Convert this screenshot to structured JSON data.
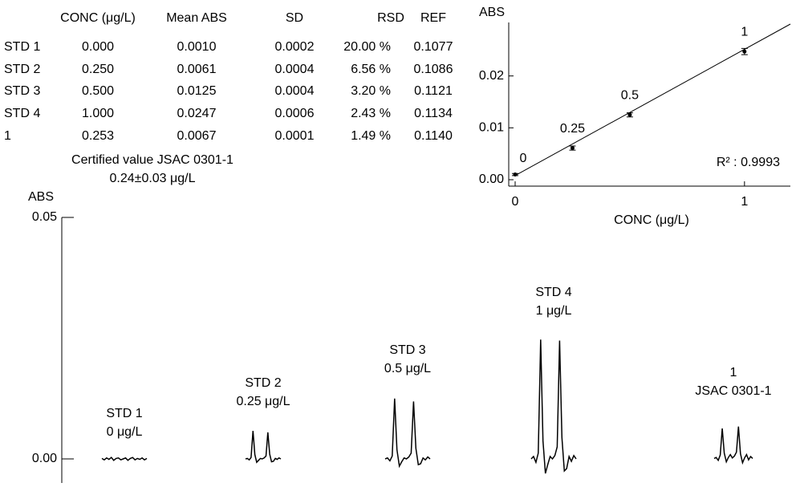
{
  "table": {
    "headers": [
      "CONC (μg/L)",
      "Mean ABS",
      "SD",
      "RSD",
      "REF"
    ],
    "rows": [
      [
        "STD 1",
        "0.000",
        "0.0010",
        "0.0002",
        "20.00 %",
        "0.1077"
      ],
      [
        "STD 2",
        "0.250",
        "0.0061",
        "0.0004",
        "6.56 %",
        "0.1086"
      ],
      [
        "STD 3",
        "0.500",
        "0.0125",
        "0.0004",
        "3.20 %",
        "0.1121"
      ],
      [
        "STD 4",
        "1.000",
        "0.0247",
        "0.0006",
        "2.43 %",
        "0.1134"
      ],
      [
        "1",
        "0.253",
        "0.0067",
        "0.0001",
        "1.49 %",
        "0.1140"
      ]
    ]
  },
  "note": [
    "Certified value JSAC 0301-1",
    "0.24±0.03 μg/L"
  ],
  "chart_data": [
    {
      "type": "scatter",
      "y_label": "ABS",
      "x_label": "CONC (μg/L)",
      "annotation": "R² : 0.9993",
      "x": [
        0,
        0.25,
        0.5,
        1
      ],
      "values": [
        0.001,
        0.0061,
        0.0125,
        0.0247
      ],
      "error": [
        0.0002,
        0.0004,
        0.0004,
        0.0006
      ],
      "point_labels": [
        "0",
        "0.25",
        "0.5",
        "1"
      ],
      "color": "#000000",
      "fit_line": {
        "x": [
          0,
          1.2
        ],
        "y": [
          0.0008,
          0.03
        ]
      },
      "xlim": [
        0,
        1.2
      ],
      "ylim": [
        0,
        0.03
      ],
      "xticks": [
        0,
        1
      ],
      "yticks": [
        {
          "value": 0,
          "label": "0.00"
        },
        {
          "value": 0.01,
          "label": "0.01"
        },
        {
          "value": 0.02,
          "label": "0.02"
        }
      ],
      "grid": false
    },
    {
      "type": "line",
      "y_label": "ABS",
      "ylim": [
        -0.005,
        0.05
      ],
      "yticks": [
        {
          "value": 0,
          "label": "0.00"
        },
        {
          "value": 0.05,
          "label": "0.05"
        }
      ],
      "color": "#000000",
      "series": [
        {
          "name": "STD 1",
          "label": "0 μg/L",
          "values": [
            0.0001,
            -0.0002,
            0.0002,
            -0.0001,
            0.0003,
            -0.0003,
            0.0001,
            0.0002,
            -0.0002,
            0.0,
            0.0002,
            -0.0003,
            0.0001,
            0.0003,
            -0.0002,
            0.0001,
            -0.0001,
            0.0002,
            -0.0002,
            0.0001
          ]
        },
        {
          "name": "STD 2",
          "label": "0.25 μg/L",
          "values": [
            0.0,
            0.0001,
            -0.0002,
            0.0003,
            0.0058,
            0.0009,
            -0.0007,
            -0.0003,
            0.0001,
            0.0,
            0.0002,
            0.0006,
            0.0055,
            0.001,
            -0.0006,
            -0.0005,
            0.0001,
            -0.0001,
            0.0002,
            0.0
          ]
        },
        {
          "name": "STD 3",
          "label": "0.5 μg/L",
          "values": [
            0.0,
            0.0002,
            -0.0004,
            0.0006,
            0.0125,
            0.0019,
            -0.0015,
            -0.0006,
            0.0002,
            0.0,
            0.0004,
            0.0012,
            0.0119,
            0.0022,
            -0.0012,
            -0.001,
            0.0002,
            -0.0002,
            0.0004,
            0.0
          ]
        },
        {
          "name": "STD 4",
          "label": "1 μg/L",
          "values": [
            0.0,
            0.0005,
            -0.0007,
            0.0012,
            0.0247,
            0.0037,
            -0.003,
            -0.0012,
            0.0005,
            0.0,
            0.0007,
            0.0025,
            0.0245,
            0.0044,
            -0.0025,
            -0.002,
            0.0005,
            -0.0005,
            0.0007,
            0.0
          ]
        },
        {
          "name": "1",
          "label": "JSAC 0301-1",
          "values": [
            0.0001,
            0.0003,
            -0.0003,
            0.0008,
            0.0063,
            0.0012,
            -0.0006,
            0.0003,
            0.0009,
            0.0002,
            0.0006,
            0.0014,
            0.0067,
            0.0011,
            -0.0008,
            0.0002,
            0.0009,
            -0.0002,
            0.0005,
            0.0001
          ]
        }
      ]
    }
  ]
}
